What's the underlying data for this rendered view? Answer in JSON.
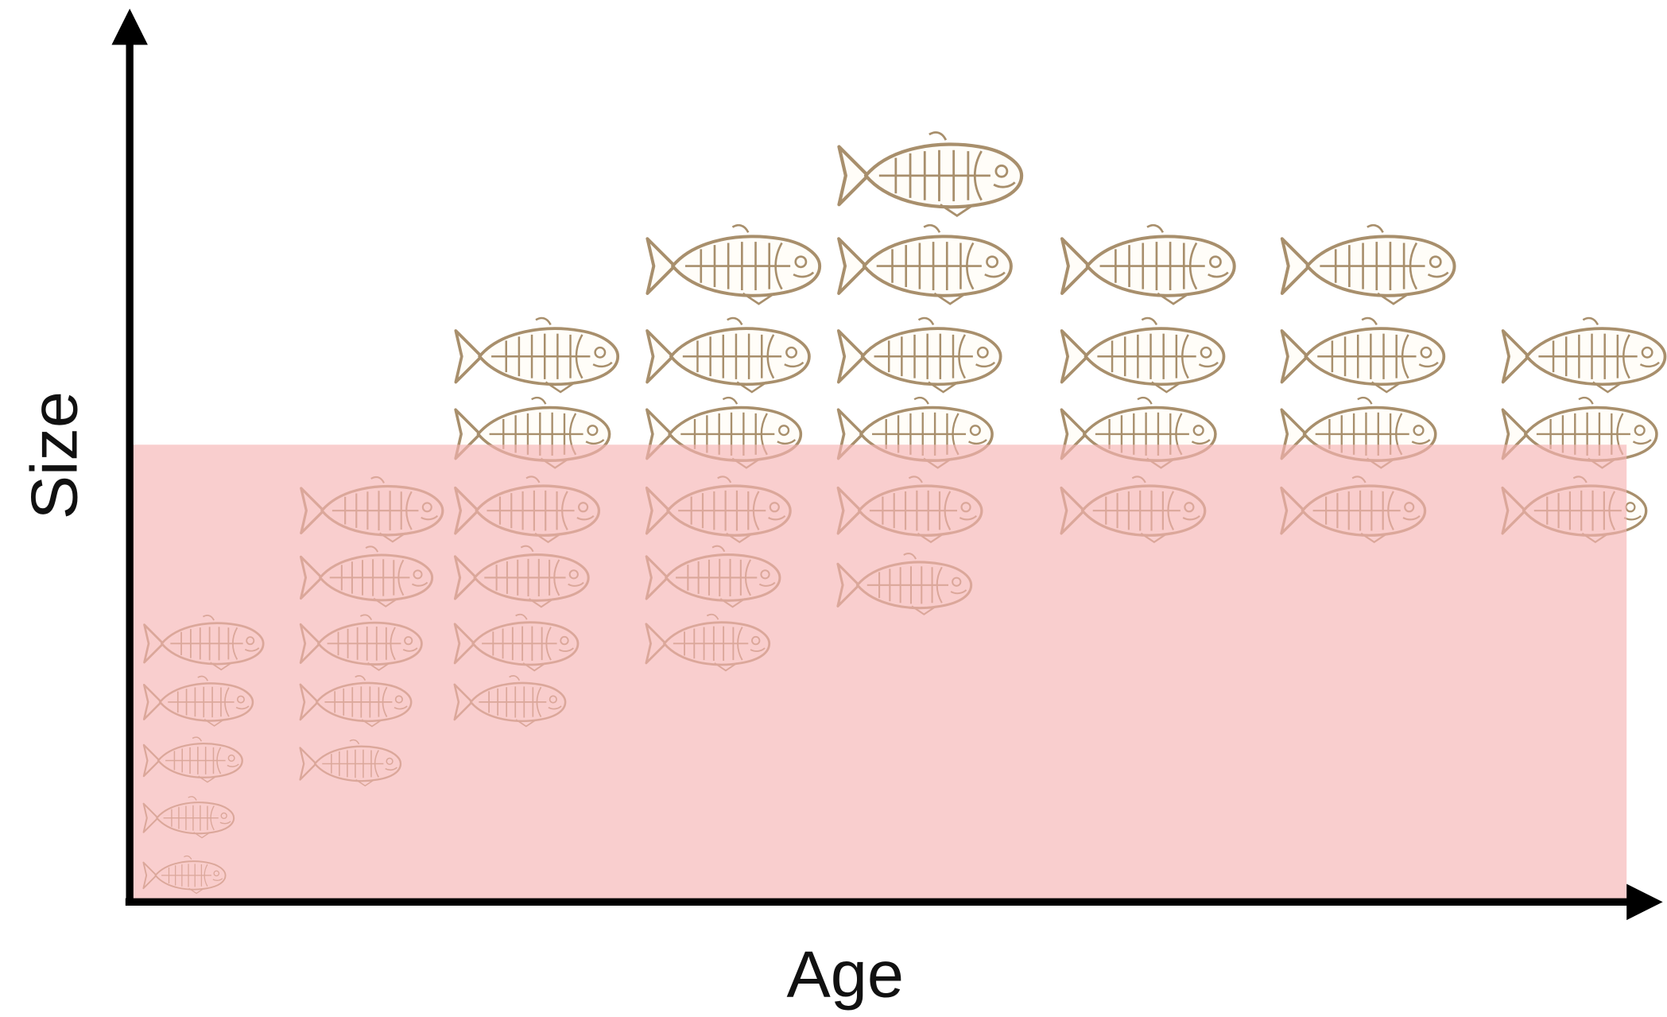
{
  "axes": {
    "y_label": "Size",
    "x_label": "Age"
  }
}
